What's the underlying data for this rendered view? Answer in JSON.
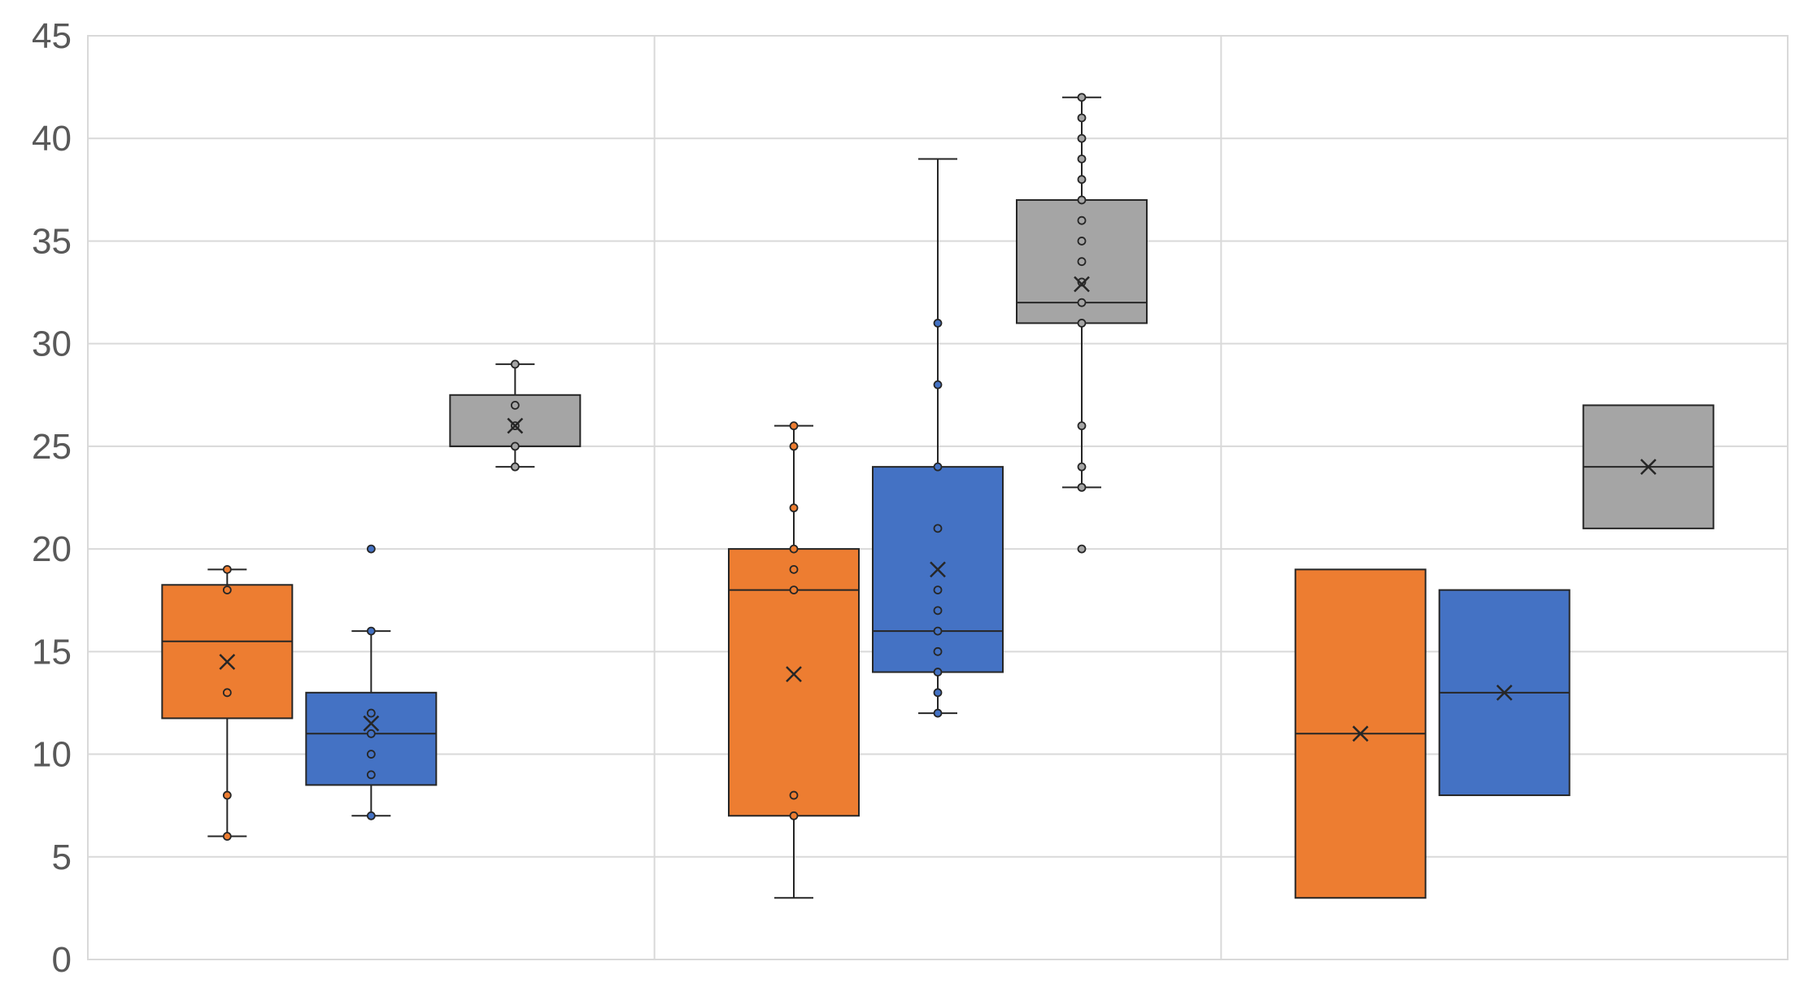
{
  "chart_data": {
    "type": "box",
    "title": "",
    "xlabel": "",
    "ylabel": "",
    "ylim": [
      0,
      45
    ],
    "yticks": [
      0,
      5,
      10,
      15,
      20,
      25,
      30,
      35,
      40,
      45
    ],
    "grid": true,
    "legend": "none",
    "categories": [
      "",
      "",
      ""
    ],
    "colors": {
      "orange": "#ED7D31",
      "blue": "#4472C4",
      "gray": "#A5A5A5"
    },
    "groups": [
      {
        "boxes": [
          {
            "color": "orange",
            "min": 6,
            "q1": 11.75,
            "median": 15.5,
            "q3": 18.25,
            "max": 19,
            "mean": 14.5,
            "points": [
              6,
              8,
              13,
              18,
              19
            ]
          },
          {
            "color": "blue",
            "min": 7,
            "q1": 8.5,
            "median": 11,
            "q3": 13,
            "max": 16,
            "mean": 11.5,
            "points": [
              7,
              9,
              10,
              11,
              12,
              16,
              20
            ]
          },
          {
            "color": "gray",
            "min": 24,
            "q1": 25,
            "median": 25,
            "q3": 27.5,
            "max": 29,
            "mean": 26,
            "points": [
              24,
              25,
              26,
              27,
              29
            ]
          }
        ]
      },
      {
        "boxes": [
          {
            "color": "orange",
            "min": 3,
            "q1": 7,
            "median": 18,
            "q3": 20,
            "max": 26,
            "mean": 13.9,
            "points": [
              7,
              8,
              18,
              19,
              20,
              22,
              25,
              26
            ]
          },
          {
            "color": "blue",
            "min": 12,
            "q1": 14,
            "median": 16,
            "q3": 24,
            "max": 39,
            "mean": 19,
            "points": [
              12,
              13,
              14,
              15,
              16,
              17,
              18,
              21,
              24,
              28,
              31
            ]
          },
          {
            "color": "gray",
            "min": 23,
            "q1": 31,
            "median": 32,
            "q3": 37,
            "max": 42,
            "mean": 32.9,
            "points": [
              20,
              23,
              24,
              26,
              31,
              32,
              33,
              34,
              35,
              36,
              37,
              38,
              39,
              40,
              41,
              42
            ]
          }
        ]
      },
      {
        "boxes": [
          {
            "color": "orange",
            "min": 3,
            "q1": 3,
            "median": 11,
            "q3": 19,
            "max": 19,
            "mean": 11,
            "points": []
          },
          {
            "color": "blue",
            "min": 8,
            "q1": 8,
            "median": 13,
            "q3": 18,
            "max": 18,
            "mean": 13,
            "points": []
          },
          {
            "color": "gray",
            "min": 21,
            "q1": 21,
            "median": 24,
            "q3": 27,
            "max": 27,
            "mean": 24,
            "points": []
          }
        ]
      }
    ]
  }
}
